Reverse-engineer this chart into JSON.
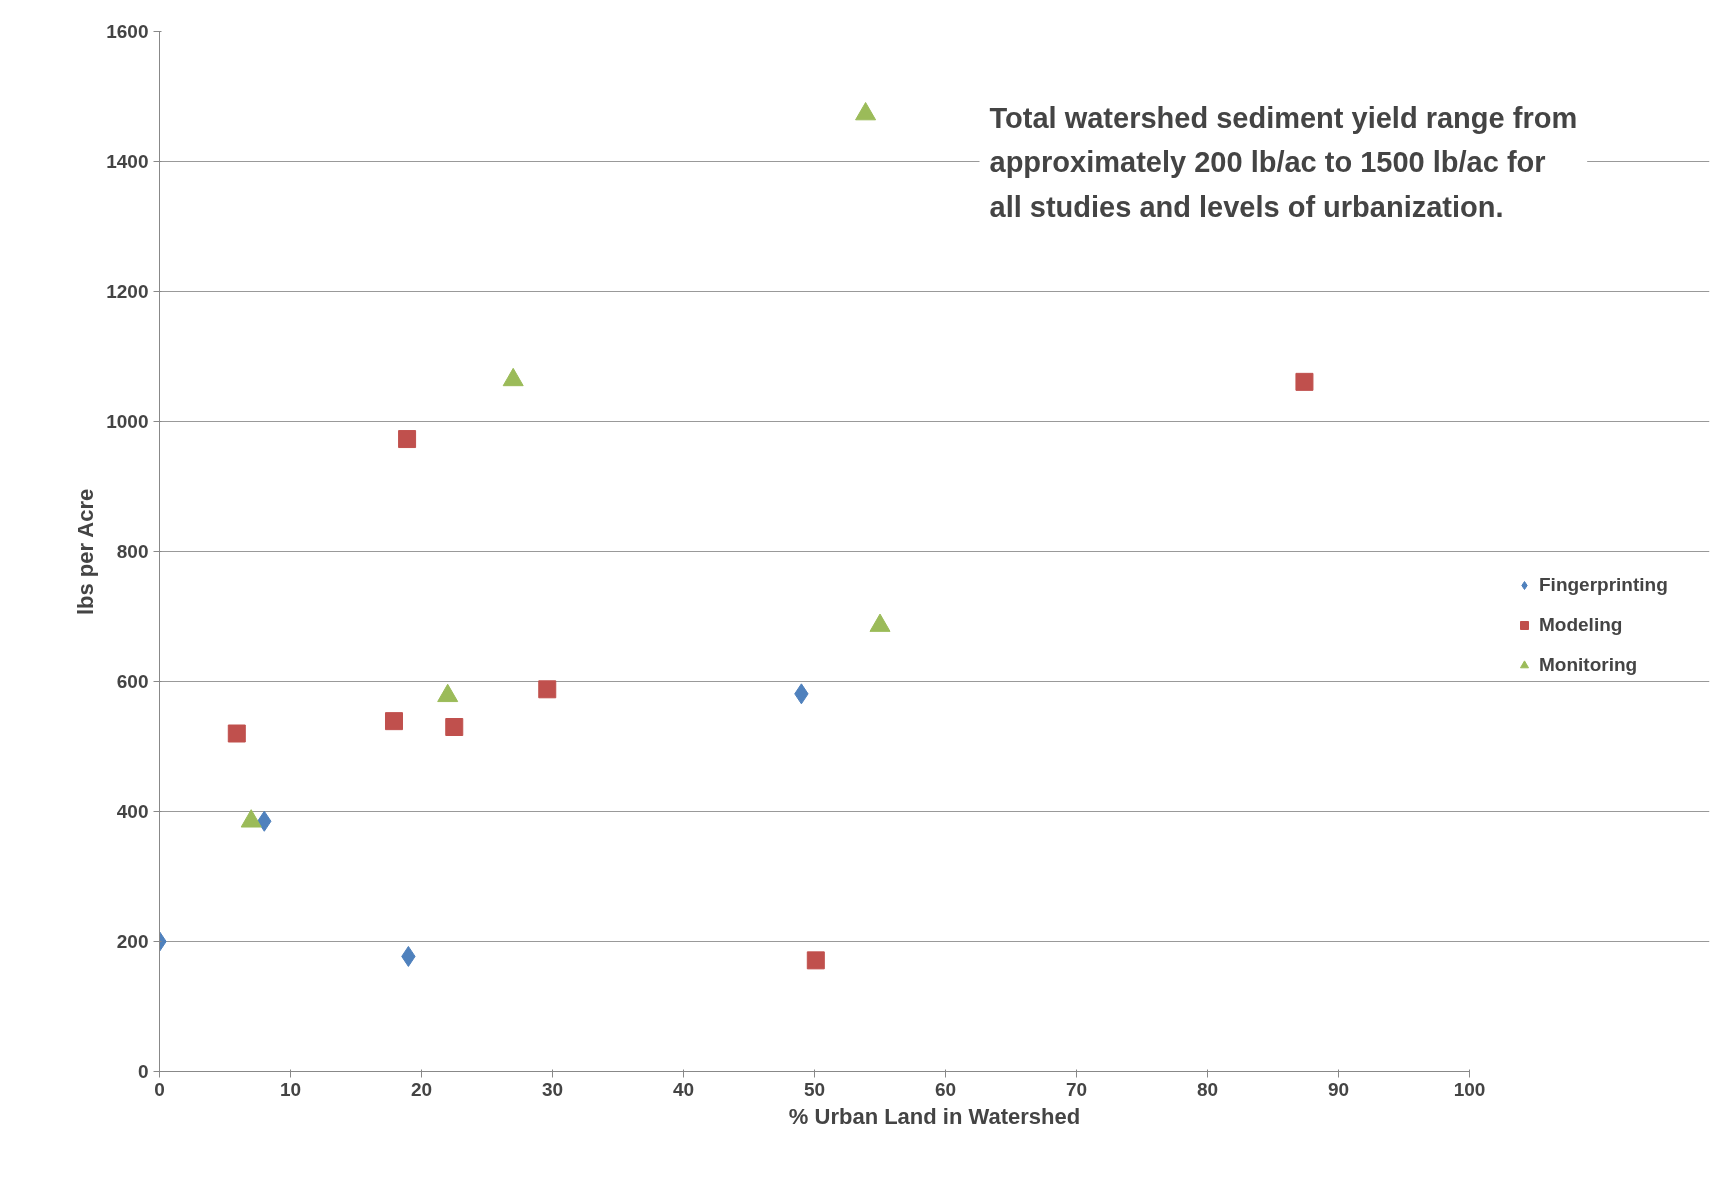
{
  "chart_data": {
    "type": "scatter",
    "xlabel": "% Urban Land in Watershed",
    "ylabel": "lbs per Acre",
    "xlim": [
      0,
      100
    ],
    "xticks": [
      0,
      10,
      20,
      30,
      40,
      50,
      60,
      70,
      80,
      90,
      100
    ],
    "ylim": [
      0,
      1600
    ],
    "yticks": [
      0,
      200,
      400,
      600,
      800,
      1000,
      1200,
      1400,
      1600
    ],
    "grid": "y",
    "legend": "right",
    "annotations": [
      "Total watershed sediment yield range from\napproximately 200 lb/ac to 1500 lb/ac for\nall studies and levels of urbanization."
    ],
    "series": [
      {
        "name": "Fingerprinting",
        "color": "#4f81bd",
        "marker": "diamond",
        "x": [
          0,
          8,
          19,
          49
        ],
        "values": [
          200,
          385,
          177,
          581
        ]
      },
      {
        "name": "Modeling",
        "color": "#c0504d",
        "marker": "square",
        "x": [
          5.9,
          18.9,
          17.9,
          22.5,
          29.6,
          50.1,
          87.4
        ],
        "values": [
          520,
          973,
          539,
          530,
          588,
          171,
          1061
        ]
      },
      {
        "name": "Monitoring",
        "color": "#9bbb59",
        "marker": "triangle",
        "x": [
          7,
          22,
          27,
          53.9,
          55
        ],
        "values": [
          385,
          578,
          1064,
          1473,
          686
        ]
      }
    ]
  }
}
